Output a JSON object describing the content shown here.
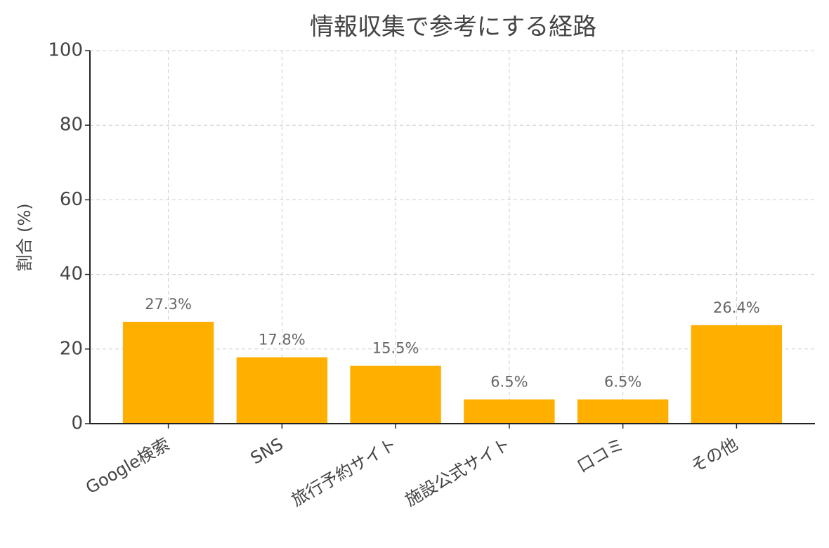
{
  "chart_data": {
    "type": "bar",
    "title": "情報収集で参考にする経路",
    "y_label": "割合 (%)",
    "categories": [
      "Google検索",
      "SNS",
      "旅行予約サイト",
      "施設公式サイト",
      "口コミ",
      "その他"
    ],
    "values": [
      27.3,
      17.8,
      15.5,
      6.5,
      6.5,
      26.4
    ],
    "value_labels": [
      "27.3%",
      "17.8%",
      "15.5%",
      "6.5%",
      "6.5%",
      "26.4%"
    ],
    "color": "#ffaf00",
    "ylim": [
      0,
      100
    ],
    "yticks": [
      0,
      20,
      40,
      60,
      80,
      100
    ],
    "grid": true
  }
}
